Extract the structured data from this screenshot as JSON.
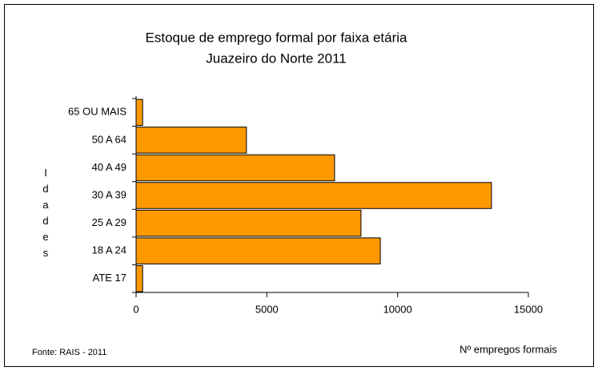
{
  "chart_data": {
    "type": "hbar",
    "title": "Estoque de emprego formal por faixa etária",
    "subtitle": "Juazeiro do Norte 2011",
    "categories": [
      "ATE 17",
      "18 A 24",
      "25 A 29",
      "30 A 39",
      "40 A 49",
      "50 A 64",
      "65 OU MAIS"
    ],
    "values": [
      250,
      9340,
      8600,
      13590,
      7590,
      4220,
      250
    ],
    "color": "#ff9900",
    "xlim": [
      0,
      15000
    ],
    "xticks": [
      0,
      5000,
      10000,
      15000
    ],
    "y_label": "Idades",
    "x_label": "Nº empregos formais",
    "source": "Fonte: RAIS - 2011"
  }
}
